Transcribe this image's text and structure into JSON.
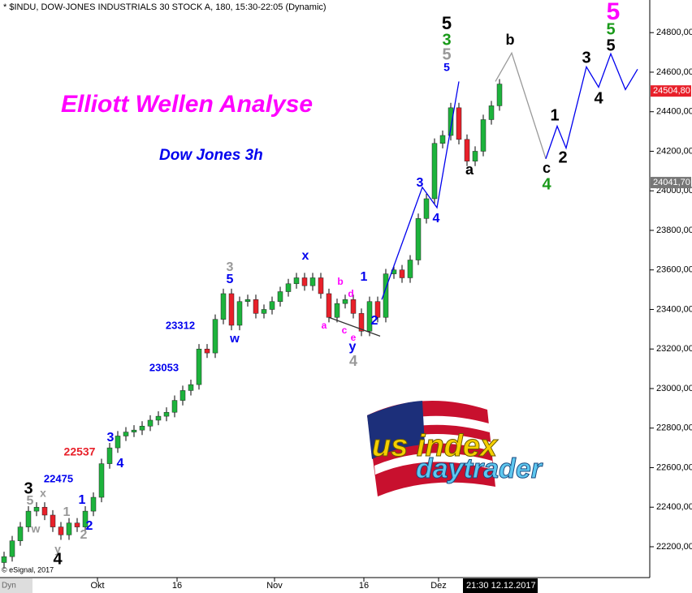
{
  "chart_data": {
    "type": "candlestick",
    "header": "* $INDU, DOW-JONES INDUSTRIALS 30 STOCK A, 180, 15:30-22:05 (Dynamic)",
    "title": "Elliott Wellen Analyse",
    "subtitle": "Dow Jones 3h",
    "copyright": "© eSignal, 2017",
    "timestamp": "21:30 12.12.2017",
    "corner": "Dyn",
    "logo": {
      "line1": "us index",
      "line2": "daytrader"
    },
    "xlim": [
      0,
      80
    ],
    "ylim": [
      22044,
      24965
    ],
    "xticks": [
      {
        "value": 12,
        "label": "Okt"
      },
      {
        "value": 21.8,
        "label": "16"
      },
      {
        "value": 33.8,
        "label": "Nov"
      },
      {
        "value": 44.8,
        "label": "16"
      },
      {
        "value": 54,
        "label": "Dez"
      }
    ],
    "yticks": [
      {
        "value": 22200,
        "label": "22200,00"
      },
      {
        "value": 22400,
        "label": "22400,00"
      },
      {
        "value": 22600,
        "label": "22600,00"
      },
      {
        "value": 22800,
        "label": "22800,00"
      },
      {
        "value": 23000,
        "label": "23000,00"
      },
      {
        "value": 23200,
        "label": "23200,00"
      },
      {
        "value": 23400,
        "label": "23400,00"
      },
      {
        "value": 23600,
        "label": "23600,00"
      },
      {
        "value": 23800,
        "label": "23800,00"
      },
      {
        "value": 24000,
        "label": "24000,00"
      },
      {
        "value": 24200,
        "label": "24200,00"
      },
      {
        "value": 24400,
        "label": "24400,00"
      },
      {
        "value": 24600,
        "label": "24600,00"
      },
      {
        "value": 24800,
        "label": "24800,00"
      }
    ],
    "up_color": "#1db33c",
    "down_color": "#e8202a",
    "x": [
      0.5,
      1.5,
      2.5,
      3.5,
      4.5,
      5.5,
      6.5,
      7.5,
      8.5,
      9.5,
      10.5,
      11.5,
      12.5,
      13.5,
      14.5,
      15.5,
      16.5,
      17.5,
      18.5,
      19.5,
      20.5,
      21.5,
      22.5,
      23.5,
      24.5,
      25.5,
      26.5,
      27.5,
      28.5,
      29.5,
      30.5,
      31.5,
      32.5,
      33.5,
      34.5,
      35.5,
      36.5,
      37.5,
      38.5,
      39.5,
      40.5,
      41.5,
      42.5,
      43.5,
      44.5,
      45.5,
      46.5,
      47.5,
      48.5,
      49.5,
      50.5,
      51.5,
      52.5,
      53.5,
      54.5,
      55.5,
      56.5,
      57.5,
      58.5,
      59.5,
      60.5,
      61.5
    ],
    "open": [
      22120,
      22150,
      22230,
      22300,
      22380,
      22400,
      22360,
      22300,
      22260,
      22320,
      22300,
      22380,
      22450,
      22620,
      22700,
      22760,
      22780,
      22790,
      22810,
      22840,
      22860,
      22880,
      22940,
      22990,
      23020,
      23200,
      23180,
      23350,
      23480,
      23320,
      23440,
      23450,
      23380,
      23400,
      23440,
      23490,
      23530,
      23560,
      23520,
      23560,
      23480,
      23360,
      23430,
      23450,
      23380,
      23290,
      23440,
      23360,
      23580,
      23600,
      23560,
      23650,
      23860,
      23960,
      24240,
      24280,
      24420,
      24260,
      24150,
      24200,
      24360,
      24430
    ],
    "high": [
      22175,
      22255,
      22325,
      22405,
      22425,
      22425,
      22385,
      22325,
      22345,
      22345,
      22405,
      22475,
      22645,
      22725,
      22785,
      22805,
      22815,
      22835,
      22865,
      22885,
      22905,
      22965,
      23015,
      23045,
      23225,
      23225,
      23375,
      23505,
      23505,
      23465,
      23475,
      23475,
      23425,
      23465,
      23515,
      23555,
      23585,
      23585,
      23585,
      23585,
      23505,
      23455,
      23475,
      23475,
      23405,
      23465,
      23465,
      23605,
      23625,
      23625,
      23675,
      23885,
      23985,
      24265,
      24305,
      24445,
      24445,
      24285,
      24225,
      24385,
      24455,
      24565
    ],
    "low": [
      22095,
      22125,
      22205,
      22275,
      22355,
      22335,
      22275,
      22235,
      22235,
      22275,
      22275,
      22355,
      22425,
      22595,
      22675,
      22735,
      22755,
      22765,
      22785,
      22815,
      22835,
      22855,
      22915,
      22965,
      22995,
      23155,
      23155,
      23325,
      23295,
      23295,
      23415,
      23355,
      23355,
      23375,
      23415,
      23465,
      23505,
      23495,
      23495,
      23455,
      23335,
      23335,
      23405,
      23355,
      23265,
      23265,
      23335,
      23335,
      23555,
      23535,
      23535,
      23625,
      23835,
      23935,
      24215,
      24255,
      24235,
      24125,
      24125,
      24175,
      24335,
      24405
    ],
    "close": [
      22150,
      22230,
      22300,
      22380,
      22400,
      22360,
      22300,
      22260,
      22320,
      22300,
      22380,
      22450,
      22620,
      22700,
      22760,
      22780,
      22790,
      22810,
      22840,
      22860,
      22880,
      22940,
      22990,
      23020,
      23200,
      23180,
      23350,
      23480,
      23320,
      23440,
      23450,
      23380,
      23400,
      23440,
      23490,
      23530,
      23560,
      23520,
      23560,
      23480,
      23360,
      23430,
      23450,
      23380,
      23290,
      23440,
      23360,
      23580,
      23600,
      23560,
      23650,
      23860,
      23960,
      24240,
      24280,
      24420,
      24260,
      24150,
      24200,
      24360,
      24430,
      24540
    ],
    "lines": [
      {
        "color": "#0000ee",
        "x": [
          47,
          52,
          53.8,
          56.5
        ],
        "y": [
          23450,
          24018,
          23915,
          24553
        ]
      },
      {
        "color": "#999999",
        "x": [
          61,
          63,
          67.2
        ],
        "y": [
          24553,
          24697,
          24162
        ]
      },
      {
        "color": "#0000ee",
        "x": [
          67.2,
          68.6,
          69.7,
          72.2,
          73.7,
          75.2,
          77,
          78.5
        ],
        "y": [
          24162,
          24327,
          24216,
          24627,
          24524,
          24693,
          24512,
          24615
        ]
      },
      {
        "color": "#333333",
        "x": [
          40.5,
          46.8
        ],
        "y": [
          23360,
          23265
        ]
      }
    ],
    "price_markers": [
      {
        "value": 24504.8,
        "label": "24504,80",
        "color": "#e8202a"
      },
      {
        "value": 24041.7,
        "label": "24041,70",
        "color": "#777777"
      }
    ],
    "wave_labels": [
      {
        "text": "5",
        "color": "#000000"
      },
      {
        "text": "3",
        "color": "#1a9a1a"
      },
      {
        "text": "5",
        "color": "#999999"
      },
      {
        "text": "5",
        "color": "#0000ee"
      },
      {
        "text": "b",
        "color": "#000000"
      },
      {
        "text": "a",
        "color": "#000000"
      },
      {
        "text": "c",
        "color": "#000000"
      },
      {
        "text": "4",
        "color": "#1a9a1a"
      },
      {
        "text": "1",
        "color": "#000000"
      },
      {
        "text": "2",
        "color": "#000000"
      },
      {
        "text": "3",
        "color": "#000000"
      },
      {
        "text": "4",
        "color": "#000000"
      },
      {
        "text": "5",
        "color": "#ff00ff"
      },
      {
        "text": "5",
        "color": "#1a9a1a"
      },
      {
        "text": "5",
        "color": "#000000"
      },
      {
        "text": "3",
        "color": "#0000ee"
      },
      {
        "text": "4",
        "color": "#0000ee"
      },
      {
        "text": "1",
        "color": "#0000ee"
      },
      {
        "text": "2",
        "color": "#0000ee"
      },
      {
        "text": "x",
        "color": "#0000ee"
      },
      {
        "text": "3",
        "color": "#999999"
      },
      {
        "text": "5",
        "color": "#0000ee"
      },
      {
        "text": "w",
        "color": "#0000ee"
      },
      {
        "text": "a",
        "color": "#ff00ff"
      },
      {
        "text": "b",
        "color": "#ff00ff"
      },
      {
        "text": "d",
        "color": "#ff00ff"
      },
      {
        "text": "c",
        "color": "#ff00ff"
      },
      {
        "text": "e",
        "color": "#ff00ff"
      },
      {
        "text": "y",
        "color": "#0000ee"
      },
      {
        "text": "4",
        "color": "#999999"
      },
      {
        "text": "3",
        "color": "#0000ee"
      },
      {
        "text": "4",
        "color": "#0000ee"
      },
      {
        "text": "1",
        "color": "#0000ee"
      },
      {
        "text": "2",
        "color": "#0000ee"
      },
      {
        "text": "1",
        "color": "#999999"
      },
      {
        "text": "2",
        "color": "#999999"
      },
      {
        "text": "3",
        "color": "#000000"
      },
      {
        "text": "5",
        "color": "#999999"
      },
      {
        "text": "x",
        "color": "#999999"
      },
      {
        "text": "w",
        "color": "#999999"
      },
      {
        "text": "y",
        "color": "#999999"
      },
      {
        "text": "4",
        "color": "#000000"
      },
      {
        "text": "23312",
        "color": "#0000ee"
      },
      {
        "text": "23053",
        "color": "#0000ee"
      },
      {
        "text": "22537",
        "color": "#e8202a"
      },
      {
        "text": "22475",
        "color": "#0000ee"
      }
    ]
  }
}
